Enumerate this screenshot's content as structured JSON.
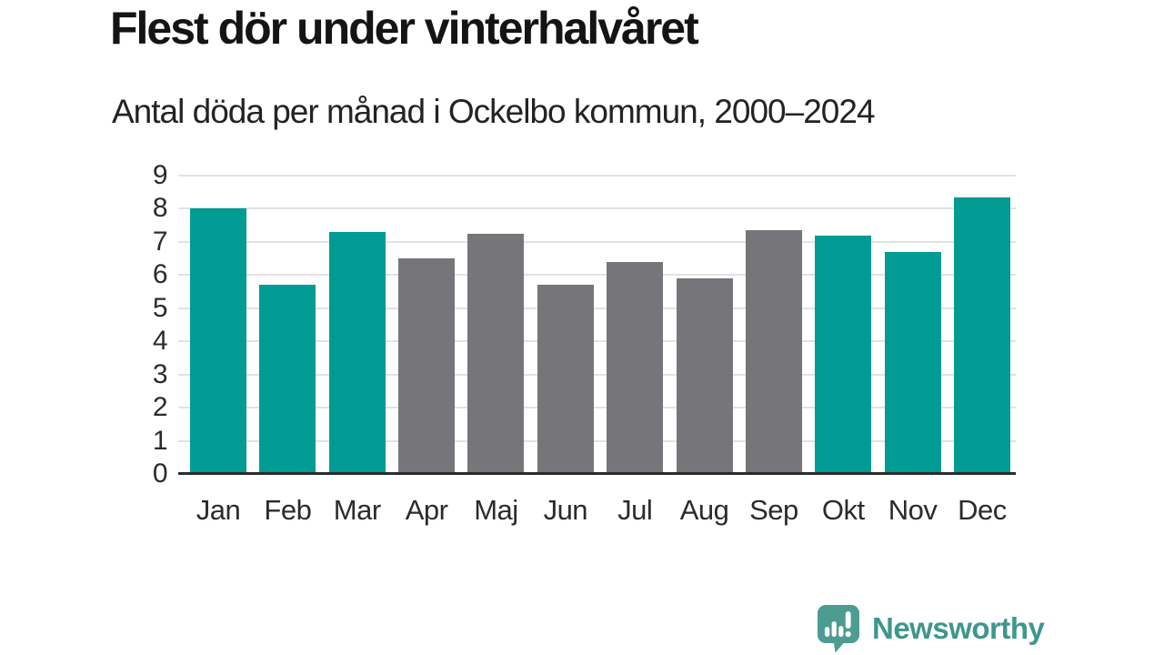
{
  "title": "Flest dör under vinterhalvåret",
  "subtitle": "Antal döda per månad i Ockelbo kommun, 2000–2024",
  "chart_data": {
    "type": "bar",
    "title": "Flest dör under vinterhalvåret",
    "subtitle": "Antal döda per månad i Ockelbo kommun, 2000–2024",
    "categories": [
      "Jan",
      "Feb",
      "Mar",
      "Apr",
      "Maj",
      "Jun",
      "Jul",
      "Aug",
      "Sep",
      "Okt",
      "Nov",
      "Dec"
    ],
    "values": [
      8.0,
      5.7,
      7.3,
      6.5,
      7.25,
      5.7,
      6.4,
      5.9,
      7.35,
      7.2,
      6.7,
      8.35
    ],
    "highlighted": [
      true,
      true,
      true,
      false,
      false,
      false,
      false,
      false,
      false,
      true,
      true,
      true
    ],
    "colors": {
      "highlight": "#009c94",
      "base": "#76767a"
    },
    "xlabel": "",
    "ylabel": "",
    "yticks": [
      0,
      1,
      2,
      3,
      4,
      5,
      6,
      7,
      8,
      9
    ],
    "ylim": [
      0,
      9
    ],
    "grid": true,
    "legend": "none"
  },
  "footer": {
    "brand": "Newsworthy",
    "brand_color": "#3f968d",
    "logo_color": "#4d9c92",
    "logo_icon": "speech-bubble-bar-chart-exclamation"
  }
}
